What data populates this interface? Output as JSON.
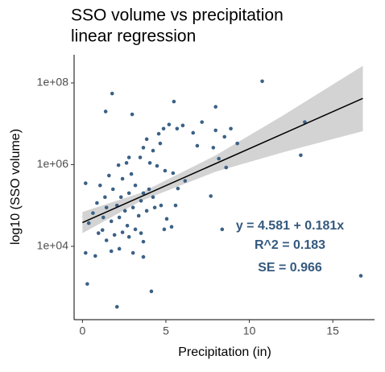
{
  "chart_data": {
    "type": "scatter",
    "title": [
      "SSO volume vs precipitation",
      "linear regression"
    ],
    "xlabel": "Precipitation (in)",
    "ylabel": "log10 (SSO volume)",
    "xlim": [
      -0.5,
      17.5
    ],
    "xticks": [
      0,
      5,
      10,
      15
    ],
    "ylim": [
      160,
      490000000
    ],
    "ylog": true,
    "yticks": [
      {
        "value": 10000,
        "label": "1e+04"
      },
      {
        "value": 1000000,
        "label": "1e+06"
      },
      {
        "value": 100000000,
        "label": "1e+08"
      }
    ],
    "grid": false,
    "color": "#3b6186",
    "x": [
      1.78,
      1.39,
      2.98,
      5.48,
      10.77,
      7.98,
      13.32,
      13.08,
      16.68,
      0.29,
      2.07,
      4.13,
      0.19,
      0.77,
      0.38,
      0.19,
      7.69,
      8.37,
      8.89,
      9.28,
      8.61,
      8.17,
      7.84,
      8.51,
      7.98,
      7.16,
      6.88,
      6.63,
      6.01,
      5.67,
      4.86,
      5.19,
      4.57,
      3.85,
      3.65,
      4.23,
      4.66,
      3.46,
      4.04,
      4.47,
      4.95,
      5.43,
      6.15,
      2.79,
      2.64,
      2.16,
      2.93,
      2.4,
      1.59,
      1.06,
      1.83,
      3.17,
      3.65,
      3.99,
      4.23,
      3.51,
      2.79,
      2.31,
      1.35,
      0.87,
      1.44,
      2.07,
      2.55,
      3.03,
      3.37,
      3.85,
      4.33,
      4.71,
      5.05,
      5.34,
      2.21,
      1.73,
      1.25,
      2.69,
      3.17,
      2.4,
      1.92,
      2.79,
      3.51,
      3.65,
      1.44,
      0.96,
      2.21,
      3.03,
      3.65,
      1.73,
      0.63,
      1.2,
      4.9,
      5.58,
      5.72
    ],
    "values": [
      55000000,
      20000000,
      17000000,
      35000000,
      110000000,
      26000000,
      11000000,
      1700000,
      1900,
      1200,
      330,
      790,
      6900,
      5800,
      37000,
      350000,
      170000,
      26000,
      7600000,
      3300000,
      850000,
      1400000,
      2600000,
      4800000,
      6900000,
      11000000,
      2900000,
      6000000,
      9100000,
      7600000,
      7600000,
      9600000,
      5700000,
      4200000,
      2600000,
      2200000,
      3300000,
      1500000,
      1100000,
      930000,
      710000,
      620000,
      400000,
      1500000,
      1100000,
      970000,
      590000,
      450000,
      540000,
      310000,
      250000,
      310000,
      200000,
      250000,
      160000,
      130000,
      200000,
      160000,
      160000,
      115000,
      89000,
      100000,
      74000,
      89000,
      56000,
      74000,
      89000,
      100000,
      47000,
      30000,
      51000,
      41000,
      51000,
      32000,
      26000,
      22000,
      19000,
      17000,
      21000,
      13000,
      14000,
      21000,
      8700,
      6900,
      5500,
      7600,
      65000,
      25000,
      26000,
      100000,
      260000
    ],
    "fit": {
      "x": [
        0,
        16.8
      ],
      "values": [
        38100,
        41900000
      ],
      "color": "#000000"
    },
    "band": {
      "x": [
        0,
        3.5,
        8,
        12,
        16.8
      ],
      "lower": [
        20900,
        129000,
        676000,
        2000000,
        6600000
      ],
      "upper": [
        69200,
        204000,
        1700000,
        15800000,
        263000000
      ],
      "color": "#d3d3d3"
    },
    "annotations": [
      "y = 4.581 + 0.181x",
      "R^2 = 0.183",
      "SE = 0.966"
    ],
    "annotation_color": "#34597e"
  }
}
